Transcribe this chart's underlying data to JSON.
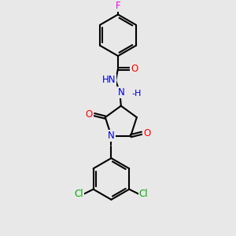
{
  "background_color": "#e8e8e8",
  "bond_color": "#000000",
  "atom_colors": {
    "N": "#0000cd",
    "O": "#ff0000",
    "F": "#ee00ee",
    "Cl": "#00aa00",
    "C": "#000000",
    "H": "#000000"
  },
  "figsize": [
    3.0,
    3.0
  ],
  "dpi": 100,
  "lw": 1.5,
  "off": 0.055
}
